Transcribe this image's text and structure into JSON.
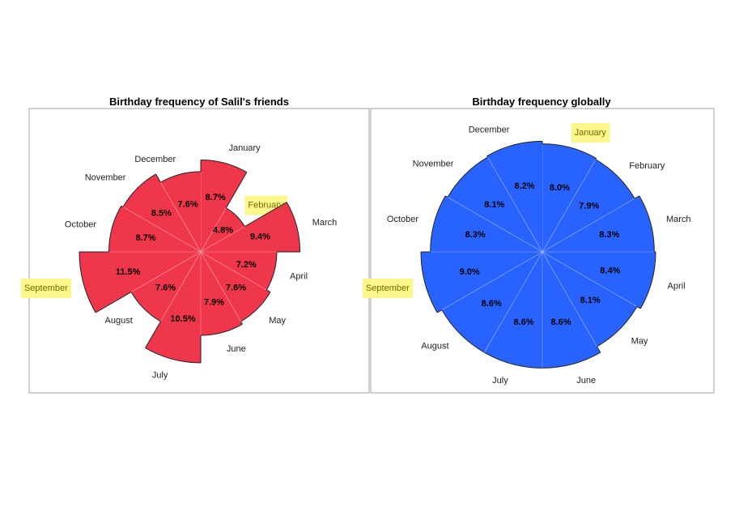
{
  "chart_data": [
    {
      "type": "polar-area",
      "title": "Birthday frequency of Salil's friends",
      "categories": [
        "January",
        "February",
        "March",
        "April",
        "May",
        "June",
        "July",
        "August",
        "September",
        "October",
        "November",
        "December"
      ],
      "values": [
        8.7,
        4.8,
        9.4,
        7.2,
        7.6,
        7.9,
        10.5,
        7.6,
        11.5,
        8.7,
        8.5,
        7.6
      ],
      "value_labels": [
        "8.7%",
        "4.8%",
        "9.4%",
        "7.2%",
        "7.6%",
        "7.9%",
        "10.5%",
        "7.6%",
        "11.5%",
        "8.7%",
        "8.5%",
        "7.6%"
      ],
      "highlighted": [
        "February",
        "September"
      ],
      "color": "#f0364b",
      "rmax": 11.5
    },
    {
      "type": "polar-area",
      "title": "Birthday frequency globally",
      "categories": [
        "January",
        "February",
        "March",
        "April",
        "May",
        "June",
        "July",
        "August",
        "September",
        "October",
        "November",
        "December"
      ],
      "values": [
        8.0,
        7.9,
        8.3,
        8.4,
        8.1,
        8.6,
        8.6,
        8.6,
        9.0,
        8.3,
        8.1,
        8.2
      ],
      "value_labels": [
        "8.0%",
        "7.9%",
        "8.3%",
        "8.4%",
        "8.1%",
        "8.6%",
        "8.6%",
        "8.6%",
        "9.0%",
        "8.3%",
        "8.1%",
        "8.2%"
      ],
      "highlighted": [
        "January",
        "September"
      ],
      "color": "#2963ff",
      "rmax": 9.0
    }
  ],
  "colors": {
    "highlight": "#fbf78a",
    "border": "#a0a0a0",
    "outline": "#222222",
    "divider": "#ffffff"
  }
}
